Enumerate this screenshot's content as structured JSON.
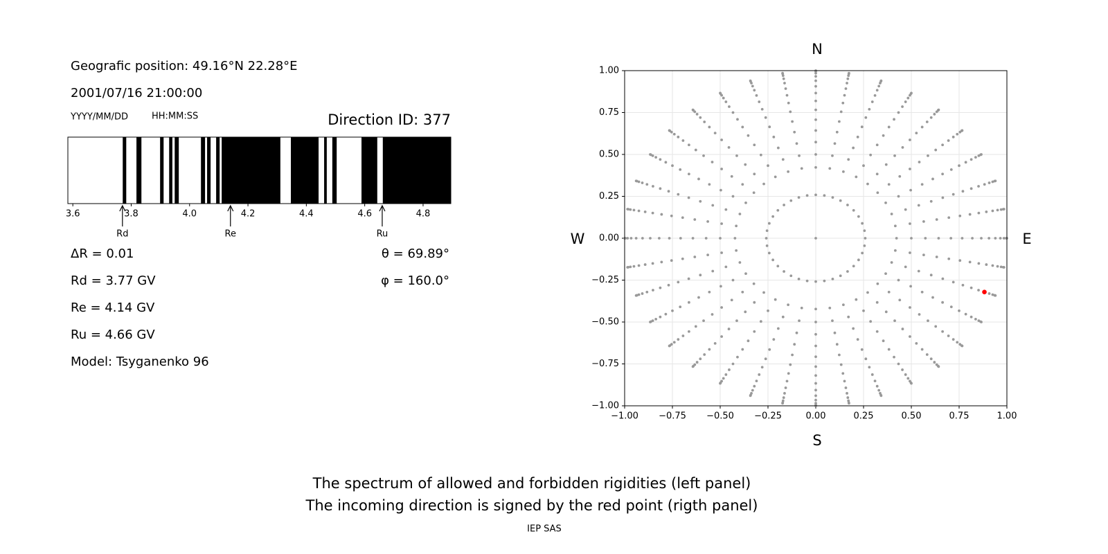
{
  "info": {
    "position": "Geografic position: 49.16°N 22.28°E",
    "datetime": "2001/07/16 21:00:00",
    "date_format": "YYYY/MM/DD",
    "time_format": "HH:MM:SS",
    "direction_id": "Direction ID: 377",
    "delta_r": "ΔR = 0.01",
    "rd": "Rd = 3.77 GV",
    "re": "Re = 4.14 GV",
    "ru": "Ru = 4.66 GV",
    "model": "Model: Tsyganenko 96",
    "theta": "θ = 69.89°",
    "phi": "φ = 160.0°"
  },
  "chart_data": [
    {
      "type": "spectrum",
      "xlim": [
        3.583,
        4.895
      ],
      "xticks": [
        3.6,
        3.8,
        {
          "value": 4,
          "label": "4.0"
        },
        4.2,
        4.4,
        4.6,
        4.8
      ],
      "color": "#000000",
      "intervals": [
        [
          3.771,
          3.783
        ],
        [
          3.818,
          3.835
        ],
        [
          3.899,
          3.911
        ],
        [
          3.93,
          3.941
        ],
        [
          3.949,
          3.963
        ],
        [
          4.039,
          4.053
        ],
        [
          4.06,
          4.072
        ],
        [
          4.091,
          4.103
        ],
        [
          4.11,
          4.311
        ],
        [
          4.347,
          4.442
        ],
        [
          4.461,
          4.47
        ],
        [
          4.489,
          4.504
        ],
        [
          4.589,
          4.643
        ],
        [
          4.662,
          4.895
        ]
      ],
      "markers": [
        {
          "label": "Rd",
          "value": 3.77
        },
        {
          "label": "Re",
          "value": 4.14
        },
        {
          "label": "Ru",
          "value": 4.66
        }
      ]
    },
    {
      "type": "scatter",
      "xlim": [
        -1,
        1
      ],
      "ylim": [
        -1,
        1
      ],
      "xticks": [
        {
          "value": -1,
          "label": "−1.00"
        },
        {
          "value": -0.75,
          "label": "−0.75"
        },
        {
          "value": -0.5,
          "label": "−0.50"
        },
        {
          "value": -0.25,
          "label": "−0.25"
        },
        {
          "value": 0,
          "label": "0.00"
        },
        {
          "value": 0.25,
          "label": "0.25"
        },
        {
          "value": 0.5,
          "label": "0.50"
        },
        {
          "value": 0.75,
          "label": "0.75"
        },
        {
          "value": 1,
          "label": "1.00"
        }
      ],
      "yticks": [
        {
          "value": -1,
          "label": "−1.00"
        },
        {
          "value": -0.75,
          "label": "−0.75"
        },
        {
          "value": -0.5,
          "label": "−0.50"
        },
        {
          "value": -0.25,
          "label": "−0.25"
        },
        {
          "value": 0,
          "label": "0.00"
        },
        {
          "value": 0.25,
          "label": "0.25"
        },
        {
          "value": 0.5,
          "label": "0.50"
        },
        {
          "value": 0.75,
          "label": "0.75"
        },
        {
          "value": 1,
          "label": "1.00"
        }
      ],
      "grid": true,
      "color": "#999999",
      "compass": {
        "north": "N",
        "south": "S",
        "west": "W",
        "east": "E"
      },
      "rings": [
        {
          "zenith": 0,
          "azimuths": [
            0
          ]
        },
        {
          "zenith": 15,
          "azimuths": [
            0,
            10,
            20,
            30,
            40,
            50,
            60,
            70,
            80,
            90,
            100,
            110,
            120,
            130,
            140,
            150,
            160,
            170,
            180,
            190,
            200,
            210,
            220,
            230,
            240,
            250,
            260,
            270,
            280,
            290,
            300,
            310,
            320,
            330,
            340,
            350
          ]
        },
        {
          "zenith": 25,
          "azimuths": [
            0,
            10,
            20,
            30,
            40,
            50,
            60,
            70,
            80,
            90,
            100,
            110,
            120,
            130,
            140,
            150,
            160,
            170,
            180,
            190,
            200,
            210,
            220,
            230,
            240,
            250,
            260,
            270,
            280,
            290,
            300,
            310,
            320,
            330,
            340,
            350
          ]
        },
        {
          "zenith": 30,
          "azimuths": [
            0,
            10,
            20,
            30,
            40,
            50,
            60,
            70,
            80,
            90,
            100,
            110,
            120,
            130,
            140,
            150,
            160,
            170,
            180,
            190,
            200,
            210,
            220,
            230,
            240,
            250,
            260,
            270,
            280,
            290,
            300,
            310,
            320,
            330,
            340,
            350
          ]
        },
        {
          "zenith": 35,
          "azimuths": [
            0,
            10,
            20,
            30,
            40,
            50,
            60,
            70,
            80,
            90,
            100,
            110,
            120,
            130,
            140,
            150,
            160,
            170,
            180,
            190,
            200,
            210,
            220,
            230,
            240,
            250,
            260,
            270,
            280,
            290,
            300,
            310,
            320,
            330,
            340,
            350
          ]
        },
        {
          "zenith": 40,
          "azimuths": [
            0,
            10,
            20,
            30,
            40,
            50,
            60,
            70,
            80,
            90,
            100,
            110,
            120,
            130,
            140,
            150,
            160,
            170,
            180,
            190,
            200,
            210,
            220,
            230,
            240,
            250,
            260,
            270,
            280,
            290,
            300,
            310,
            320,
            330,
            340,
            350
          ]
        },
        {
          "zenith": 45,
          "azimuths": [
            0,
            10,
            20,
            30,
            40,
            50,
            60,
            70,
            80,
            90,
            100,
            110,
            120,
            130,
            140,
            150,
            160,
            170,
            180,
            190,
            200,
            210,
            220,
            230,
            240,
            250,
            260,
            270,
            280,
            290,
            300,
            310,
            320,
            330,
            340,
            350
          ]
        },
        {
          "zenith": 50,
          "azimuths": [
            0,
            10,
            20,
            30,
            40,
            50,
            60,
            70,
            80,
            90,
            100,
            110,
            120,
            130,
            140,
            150,
            160,
            170,
            180,
            190,
            200,
            210,
            220,
            230,
            240,
            250,
            260,
            270,
            280,
            290,
            300,
            310,
            320,
            330,
            340,
            350
          ]
        },
        {
          "zenith": 55,
          "azimuths": [
            0,
            10,
            20,
            30,
            40,
            50,
            60,
            70,
            80,
            90,
            100,
            110,
            120,
            130,
            140,
            150,
            160,
            170,
            180,
            190,
            200,
            210,
            220,
            230,
            240,
            250,
            260,
            270,
            280,
            290,
            300,
            310,
            320,
            330,
            340,
            350
          ]
        },
        {
          "zenith": 60,
          "azimuths": [
            0,
            10,
            20,
            30,
            40,
            50,
            60,
            70,
            80,
            90,
            100,
            110,
            120,
            130,
            140,
            150,
            160,
            170,
            180,
            190,
            200,
            210,
            220,
            230,
            240,
            250,
            260,
            270,
            280,
            290,
            300,
            310,
            320,
            330,
            340,
            350
          ]
        },
        {
          "zenith": 65,
          "azimuths": [
            0,
            10,
            20,
            30,
            40,
            50,
            60,
            70,
            80,
            90,
            100,
            110,
            120,
            130,
            140,
            150,
            160,
            170,
            180,
            190,
            200,
            210,
            220,
            230,
            240,
            250,
            260,
            270,
            280,
            290,
            300,
            310,
            320,
            330,
            340,
            350
          ]
        },
        {
          "zenith": 70,
          "azimuths": [
            0,
            10,
            20,
            30,
            40,
            50,
            60,
            70,
            80,
            90,
            100,
            110,
            120,
            130,
            140,
            150,
            160,
            170,
            180,
            190,
            200,
            210,
            220,
            230,
            240,
            250,
            260,
            270,
            280,
            290,
            300,
            310,
            320,
            330,
            340,
            350
          ]
        },
        {
          "zenith": 75,
          "azimuths": [
            0,
            10,
            20,
            30,
            40,
            50,
            60,
            70,
            80,
            90,
            100,
            110,
            120,
            130,
            140,
            150,
            160,
            170,
            180,
            190,
            200,
            210,
            220,
            230,
            240,
            250,
            260,
            270,
            280,
            290,
            300,
            310,
            320,
            330,
            340,
            350
          ]
        },
        {
          "zenith": 80,
          "azimuths": [
            0,
            10,
            20,
            30,
            40,
            50,
            60,
            70,
            80,
            90,
            100,
            110,
            120,
            130,
            140,
            150,
            160,
            170,
            180,
            190,
            200,
            210,
            220,
            230,
            240,
            250,
            260,
            270,
            280,
            290,
            300,
            310,
            320,
            330,
            340,
            350
          ]
        },
        {
          "zenith": 85,
          "azimuths": [
            0,
            10,
            20,
            30,
            40,
            50,
            60,
            70,
            80,
            90,
            100,
            110,
            120,
            130,
            140,
            150,
            160,
            170,
            180,
            190,
            200,
            210,
            220,
            230,
            240,
            250,
            260,
            270,
            280,
            290,
            300,
            310,
            320,
            330,
            340,
            350
          ]
        },
        {
          "zenith": 90,
          "azimuths": [
            0,
            10,
            20,
            30,
            40,
            50,
            60,
            70,
            80,
            90,
            100,
            110,
            120,
            130,
            140,
            150,
            160,
            170,
            180,
            190,
            200,
            210,
            220,
            230,
            240,
            250,
            260,
            270,
            280,
            290,
            300,
            310,
            320,
            330,
            340,
            350
          ]
        }
      ],
      "highlight": {
        "zenith": 69.89,
        "azimuth": 160,
        "color": "#ff0000"
      }
    }
  ],
  "caption": [
    "The spectrum of allowed and forbidden rigidities (left panel)",
    "The incoming direction is signed by the red point (rigth panel)"
  ],
  "footer": "IEP SAS"
}
